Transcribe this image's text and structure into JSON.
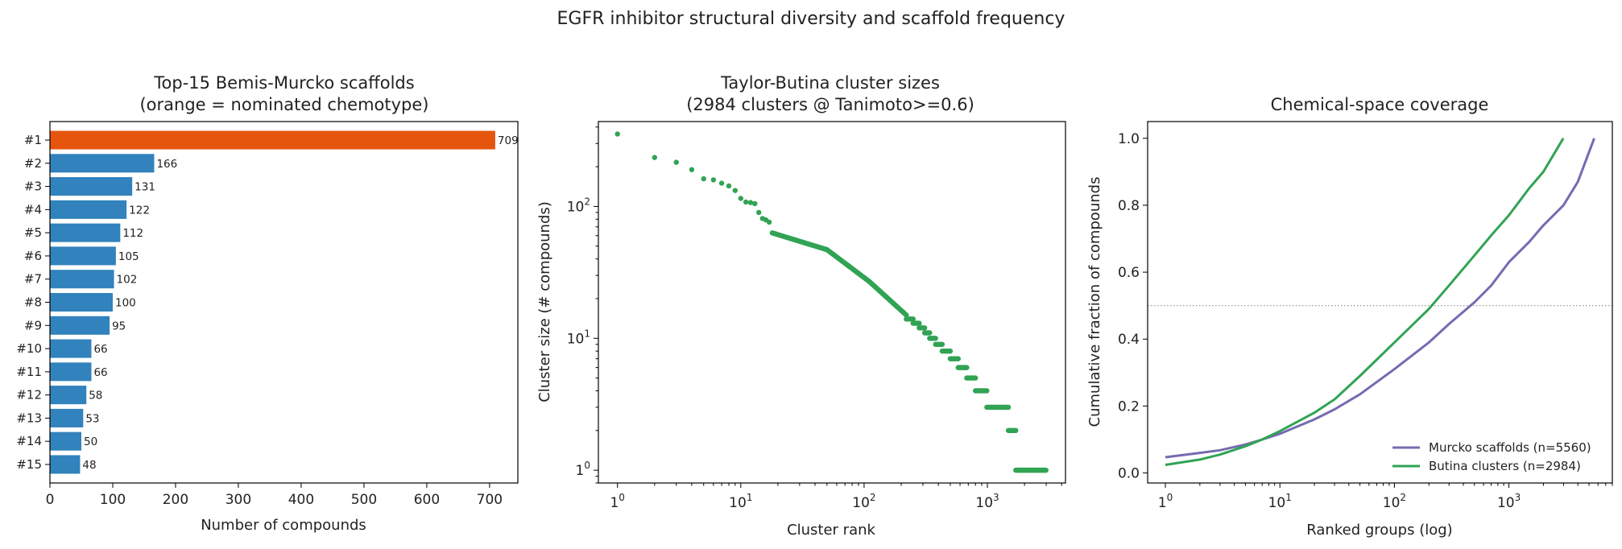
{
  "suptitle": "EGFR inhibitor structural diversity and scaffold frequency",
  "colors": {
    "highlight": "#e6550d",
    "bar": "#3182bd",
    "butina": "#31a354",
    "murcko": "#756bb1",
    "reference": "#999999"
  },
  "chart_data": [
    {
      "type": "bar",
      "orientation": "horizontal",
      "title": [
        "Top-15 Bemis-Murcko scaffolds",
        "(orange = nominated chemotype)"
      ],
      "xlabel": "Number of compounds",
      "ylabel": "",
      "categories": [
        "#1",
        "#2",
        "#3",
        "#4",
        "#5",
        "#6",
        "#7",
        "#8",
        "#9",
        "#10",
        "#11",
        "#12",
        "#13",
        "#14",
        "#15"
      ],
      "values": [
        709,
        166,
        131,
        122,
        112,
        105,
        102,
        100,
        95,
        66,
        66,
        58,
        53,
        50,
        48
      ],
      "highlight_index": 0,
      "xlim": [
        0,
        745
      ],
      "xticks": [
        0,
        100,
        200,
        300,
        400,
        500,
        600,
        700
      ],
      "grid": false
    },
    {
      "type": "scatter",
      "title": [
        "Taylor-Butina cluster sizes",
        "(2984 clusters @ Tanimoto>=0.6)"
      ],
      "xlabel": "Cluster rank",
      "ylabel": "Cluster size (# compounds)",
      "xscale": "log",
      "yscale": "log",
      "xlim": [
        0.7,
        4300
      ],
      "ylim": [
        0.8,
        440
      ],
      "xticks": [
        1,
        10,
        100,
        1000
      ],
      "xtick_labels": [
        [
          "1",
          "0"
        ],
        [
          "10",
          "1"
        ],
        [
          "10",
          "2"
        ],
        [
          "10",
          "3"
        ]
      ],
      "yticks": [
        1,
        10,
        100
      ],
      "ytick_labels": [
        [
          "1",
          "0"
        ],
        [
          "10",
          "1"
        ],
        [
          "10",
          "2"
        ]
      ],
      "points": [
        [
          1,
          354
        ],
        [
          2,
          235
        ],
        [
          3,
          216
        ],
        [
          4,
          190
        ],
        [
          5,
          162
        ],
        [
          6,
          159
        ],
        [
          7,
          150
        ],
        [
          8,
          143
        ],
        [
          9,
          132
        ],
        [
          10,
          115
        ],
        [
          11,
          108
        ],
        [
          12,
          107
        ],
        [
          13,
          105
        ],
        [
          14,
          90
        ],
        [
          15,
          81
        ],
        [
          16,
          79
        ],
        [
          17,
          76
        ]
      ],
      "segments": [
        {
          "x0": 18,
          "x1": 50,
          "y0": 63,
          "y1": 47
        },
        {
          "x0": 50,
          "x1": 110,
          "y0": 47,
          "y1": 27
        },
        {
          "x0": 110,
          "x1": 220,
          "y0": 27,
          "y1": 15
        }
      ],
      "plateaus": [
        {
          "x0": 220,
          "x1": 250,
          "y": 14
        },
        {
          "x0": 250,
          "x1": 280,
          "y": 13
        },
        {
          "x0": 280,
          "x1": 310,
          "y": 12
        },
        {
          "x0": 310,
          "x1": 340,
          "y": 11
        },
        {
          "x0": 340,
          "x1": 380,
          "y": 10
        },
        {
          "x0": 380,
          "x1": 430,
          "y": 9
        },
        {
          "x0": 430,
          "x1": 500,
          "y": 8
        },
        {
          "x0": 500,
          "x1": 580,
          "y": 7
        },
        {
          "x0": 580,
          "x1": 680,
          "y": 6
        },
        {
          "x0": 680,
          "x1": 800,
          "y": 5
        },
        {
          "x0": 800,
          "x1": 990,
          "y": 4
        },
        {
          "x0": 990,
          "x1": 1420,
          "y": 3
        },
        {
          "x0": 1420,
          "x1": 1480,
          "y": 3
        },
        {
          "x0": 1480,
          "x1": 1500,
          "y": 2
        },
        {
          "x0": 1500,
          "x1": 1700,
          "y": 2
        },
        {
          "x0": 1700,
          "x1": 2984,
          "y": 1
        }
      ]
    },
    {
      "type": "line",
      "title": [
        "Chemical-space coverage"
      ],
      "xlabel": "Ranked groups (log)",
      "ylabel": "Cumulative fraction of compounds",
      "xscale": "log",
      "xlim": [
        0.7,
        8000
      ],
      "ylim": [
        -0.03,
        1.05
      ],
      "xticks": [
        1,
        10,
        100,
        1000
      ],
      "xtick_labels": [
        [
          "1",
          "0"
        ],
        [
          "10",
          "1"
        ],
        [
          "10",
          "2"
        ],
        [
          "10",
          "3"
        ]
      ],
      "yticks": [
        0.0,
        0.2,
        0.4,
        0.6,
        0.8,
        1.0
      ],
      "ytick_labels": [
        "0.0",
        "0.2",
        "0.4",
        "0.6",
        "0.8",
        "1.0"
      ],
      "reference_line": 0.5,
      "legend_position": "lower-right",
      "series": [
        {
          "name": "Murcko scaffolds (n=5560)",
          "points": [
            [
              1,
              0.047
            ],
            [
              2,
              0.06
            ],
            [
              3,
              0.068
            ],
            [
              5,
              0.085
            ],
            [
              7,
              0.1
            ],
            [
              10,
              0.117
            ],
            [
              20,
              0.16
            ],
            [
              30,
              0.19
            ],
            [
              50,
              0.235
            ],
            [
              100,
              0.31
            ],
            [
              200,
              0.39
            ],
            [
              300,
              0.445
            ],
            [
              500,
              0.51
            ],
            [
              700,
              0.56
            ],
            [
              1000,
              0.63
            ],
            [
              1500,
              0.69
            ],
            [
              2000,
              0.74
            ],
            [
              3000,
              0.8
            ],
            [
              4000,
              0.87
            ],
            [
              5560,
              1.0
            ]
          ]
        },
        {
          "name": "Butina clusters (n=2984)",
          "points": [
            [
              1,
              0.024
            ],
            [
              2,
              0.04
            ],
            [
              3,
              0.055
            ],
            [
              5,
              0.08
            ],
            [
              7,
              0.1
            ],
            [
              10,
              0.125
            ],
            [
              20,
              0.18
            ],
            [
              30,
              0.22
            ],
            [
              50,
              0.29
            ],
            [
              100,
              0.39
            ],
            [
              200,
              0.49
            ],
            [
              300,
              0.56
            ],
            [
              500,
              0.65
            ],
            [
              700,
              0.71
            ],
            [
              1000,
              0.77
            ],
            [
              1500,
              0.85
            ],
            [
              2000,
              0.9
            ],
            [
              2984,
              1.0
            ]
          ]
        }
      ]
    }
  ]
}
